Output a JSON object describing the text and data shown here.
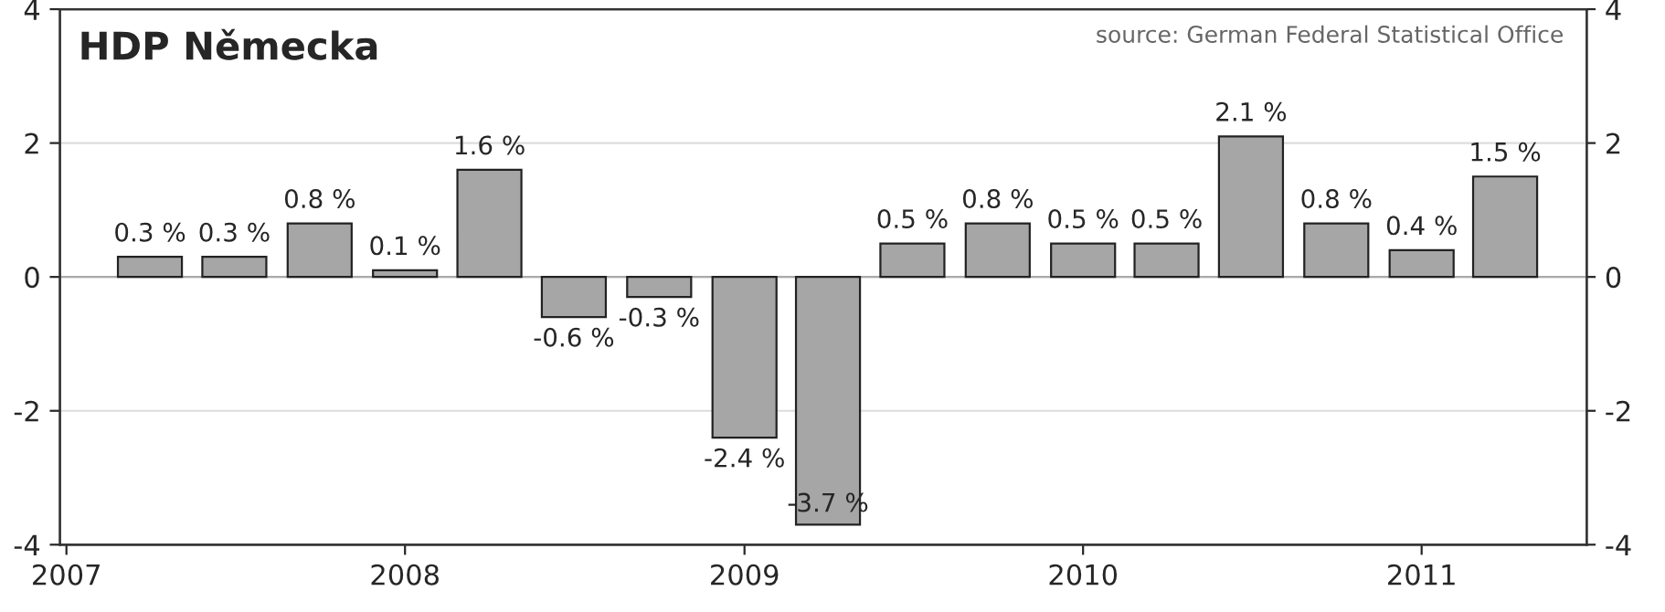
{
  "chart_data": {
    "type": "bar",
    "title": "HDP Německa",
    "annotations": [
      "source: German Federal Statistical Office"
    ],
    "x": [
      "2007-04",
      "2007-07",
      "2007-10",
      "2008-01",
      "2008-04",
      "2008-07",
      "2008-10",
      "2009-01",
      "2009-04",
      "2009-07",
      "2009-10",
      "2010-01",
      "2010-04",
      "2010-07",
      "2010-10",
      "2011-01",
      "2011-04"
    ],
    "values": [
      0.3,
      0.3,
      0.8,
      0.1,
      1.6,
      -0.6,
      -0.3,
      -2.4,
      -3.7,
      0.5,
      0.8,
      0.5,
      0.5,
      2.1,
      0.8,
      0.4,
      1.5
    ],
    "value_labels": [
      "0.3 %",
      "0.3 %",
      "0.8 %",
      "0.1 %",
      "1.6 %",
      "-0.6 %",
      "-0.3 %",
      "-2.4 %",
      "-3.7 %",
      "0.5 %",
      "0.8 %",
      "0.5 %",
      "0.5 %",
      "2.1 %",
      "0.8 %",
      "0.4 %",
      "1.5 %"
    ],
    "color": "#a6a6a6",
    "xlim": [
      "2006-12-25",
      "2011-06-28"
    ],
    "xticks": [
      {
        "value": "2007-01-01",
        "label": "2007"
      },
      {
        "value": "2008-01-01",
        "label": "2008"
      },
      {
        "value": "2009-01-01",
        "label": "2009"
      },
      {
        "value": "2010-01-01",
        "label": "2010"
      },
      {
        "value": "2011-01-01",
        "label": "2011"
      }
    ],
    "ylim": [
      -4,
      4
    ],
    "yticks": [
      -4,
      -2,
      0,
      2,
      4
    ],
    "y2lim": [
      -4,
      4
    ],
    "y2ticks": [
      -4,
      -2,
      0,
      2,
      4
    ],
    "grid": "y",
    "legend": false
  }
}
